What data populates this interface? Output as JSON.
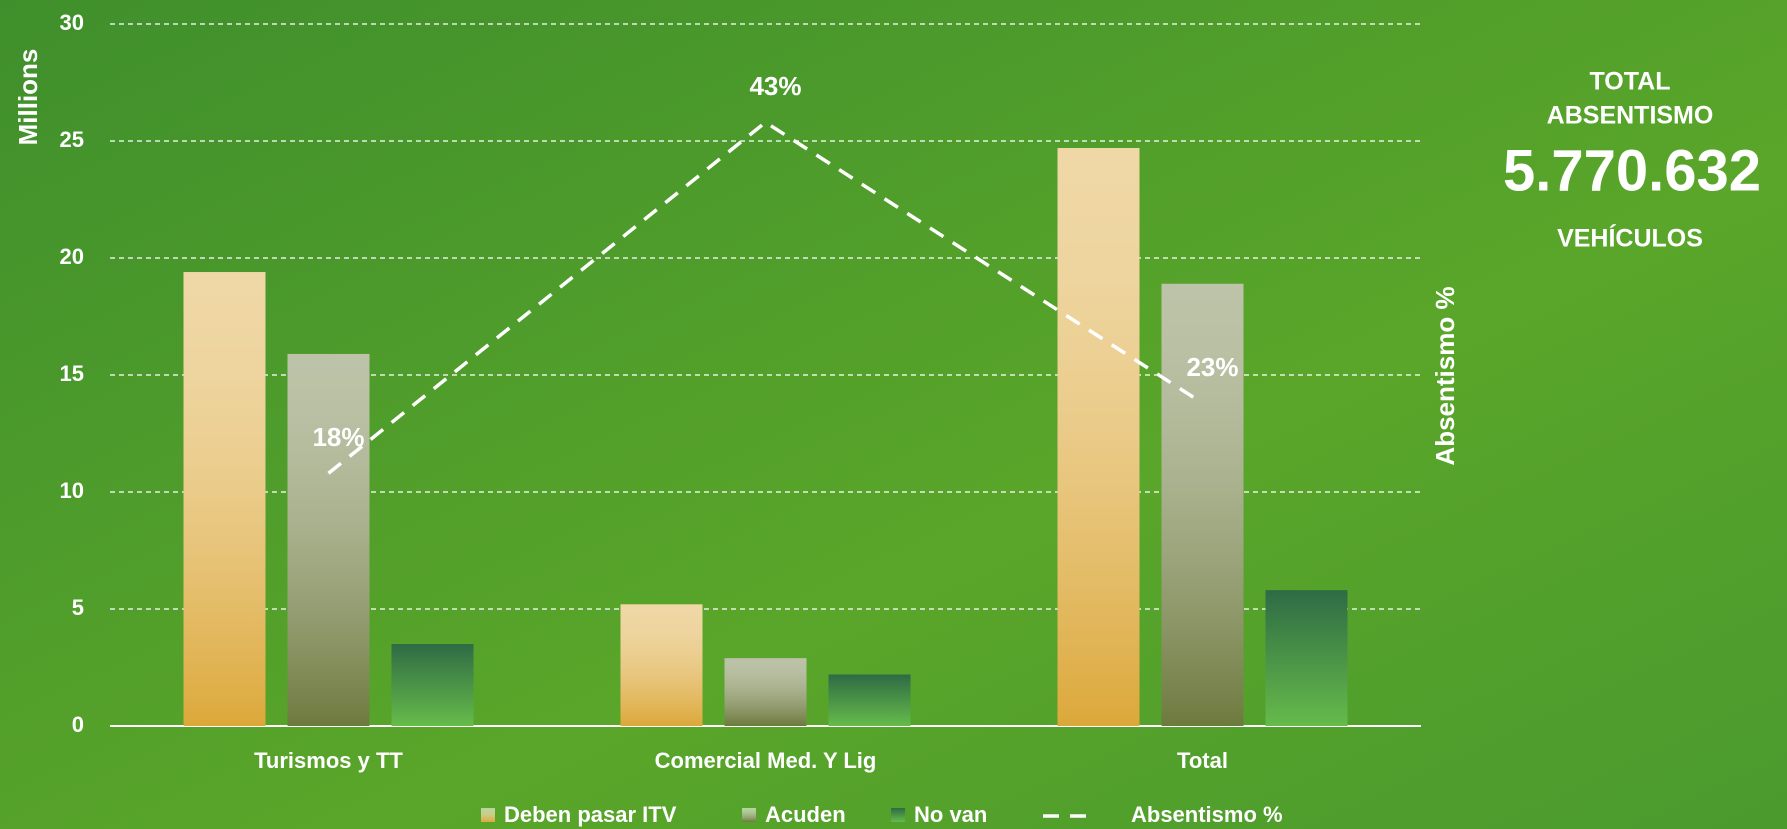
{
  "chart_data": {
    "type": "bar",
    "y_axis_label": "Millions",
    "y2_axis_label": "Absentismo %",
    "categories": [
      "Turismos y TT",
      "Comercial Med. Y Lig",
      "Total"
    ],
    "series": [
      {
        "name": "Deben pasar ITV",
        "color": "#dca83a",
        "values": [
          19.4,
          5.2,
          24.7
        ]
      },
      {
        "name": "Acuden",
        "color": "#6d7a3e",
        "values": [
          15.9,
          2.9,
          18.9
        ]
      },
      {
        "name": "No van",
        "color": "#2e6b45",
        "values": [
          3.5,
          2.2,
          5.8
        ]
      },
      {
        "name": "Absentismo %",
        "color": "#ffffff",
        "type": "line",
        "dashed": true,
        "axis": "y2",
        "values": [
          18,
          43,
          23
        ],
        "value_labels": [
          "18%",
          "43%",
          "23%"
        ]
      }
    ],
    "ylim": [
      0,
      30
    ],
    "yticks": [
      0,
      5,
      10,
      15,
      20,
      25,
      30
    ],
    "y2lim": [
      0,
      50
    ],
    "grid": true,
    "legend": "bottom",
    "side_panel": {
      "line1": "TOTAL",
      "line2": "ABSENTISMO",
      "number": "5.770.632",
      "line3": "VEHÍCULOS"
    }
  }
}
